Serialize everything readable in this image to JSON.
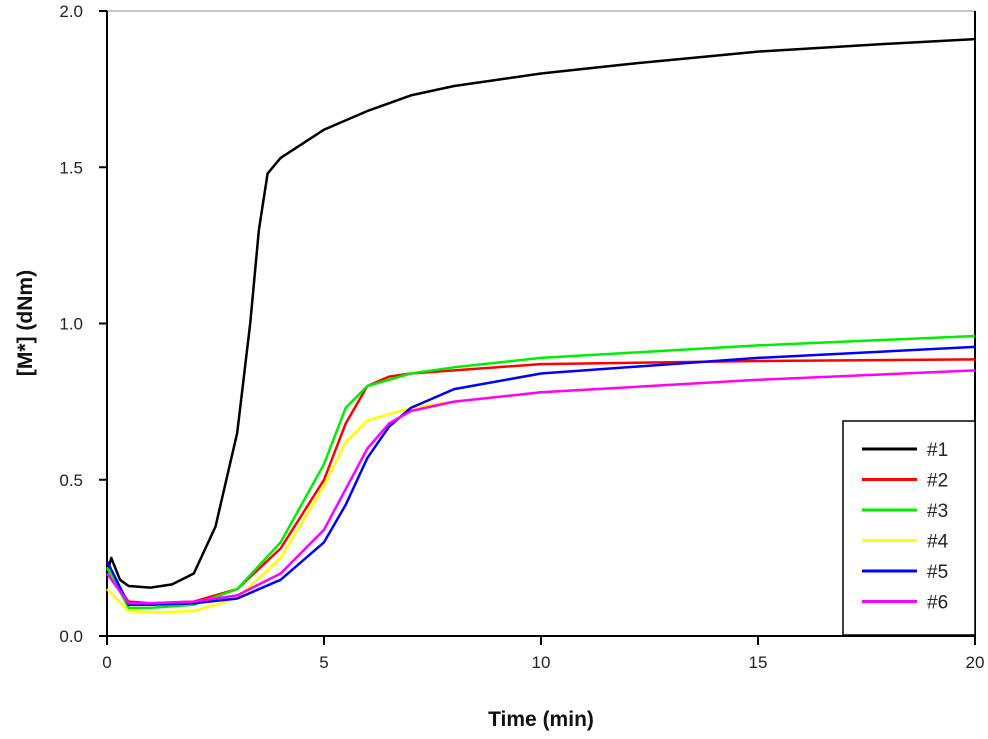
{
  "chart_data": {
    "type": "line",
    "title": "",
    "xlabel": "Time (min)",
    "ylabel": "[M*] (dNm)",
    "xlim": [
      0,
      20
    ],
    "ylim": [
      0,
      2.0
    ],
    "xticks": [
      "0",
      "5",
      "10",
      "15",
      "20"
    ],
    "xtick_values": [
      0,
      5,
      10,
      15,
      20
    ],
    "yticks": [
      "0.0",
      "0.5",
      "1.0",
      "1.5",
      "2.0"
    ],
    "ytick_values": [
      0,
      0.5,
      1.0,
      1.5,
      2.0
    ],
    "grid": false,
    "legend_position": "bottom-right",
    "series": [
      {
        "name": "#1",
        "color": "#000000",
        "x": [
          0,
          0.1,
          0.3,
          0.5,
          1,
          1.5,
          2,
          2.5,
          3,
          3.3,
          3.5,
          3.7,
          4,
          5,
          6,
          7,
          8,
          10,
          12,
          15,
          18,
          20
        ],
        "y": [
          0.2,
          0.25,
          0.18,
          0.16,
          0.155,
          0.165,
          0.2,
          0.35,
          0.65,
          1.0,
          1.3,
          1.48,
          1.53,
          1.62,
          1.68,
          1.73,
          1.76,
          1.8,
          1.83,
          1.87,
          1.895,
          1.91
        ]
      },
      {
        "name": "#2",
        "color": "#ff0000",
        "x": [
          0,
          0.5,
          1,
          2,
          3,
          4,
          5,
          5.5,
          6,
          6.5,
          7,
          8,
          10,
          15,
          20
        ],
        "y": [
          0.2,
          0.11,
          0.105,
          0.11,
          0.15,
          0.28,
          0.5,
          0.68,
          0.8,
          0.83,
          0.84,
          0.85,
          0.87,
          0.88,
          0.885
        ]
      },
      {
        "name": "#3",
        "color": "#00ee00",
        "x": [
          0,
          0.5,
          1,
          2,
          3,
          4,
          5,
          5.5,
          6,
          7,
          8,
          10,
          15,
          20
        ],
        "y": [
          0.22,
          0.09,
          0.09,
          0.1,
          0.15,
          0.3,
          0.55,
          0.73,
          0.8,
          0.84,
          0.86,
          0.89,
          0.93,
          0.96
        ]
      },
      {
        "name": "#4",
        "color": "#ffff00",
        "x": [
          0,
          0.5,
          1,
          2,
          3,
          4,
          5,
          5.5,
          6,
          7,
          8,
          10,
          15,
          20
        ],
        "y": [
          0.15,
          0.08,
          0.075,
          0.08,
          0.12,
          0.25,
          0.48,
          0.62,
          0.69,
          0.73,
          0.75,
          0.78,
          0.82,
          0.85
        ]
      },
      {
        "name": "#5",
        "color": "#0000ff",
        "x": [
          0,
          0.5,
          1,
          2,
          3,
          4,
          5,
          5.5,
          6,
          6.5,
          7,
          8,
          10,
          15,
          20
        ],
        "y": [
          0.24,
          0.1,
          0.1,
          0.105,
          0.12,
          0.18,
          0.3,
          0.42,
          0.57,
          0.67,
          0.73,
          0.79,
          0.84,
          0.89,
          0.925
        ]
      },
      {
        "name": "#6",
        "color": "#ff00ff",
        "x": [
          0,
          0.5,
          1,
          2,
          3,
          4,
          5,
          5.5,
          6,
          6.5,
          7,
          8,
          10,
          15,
          20
        ],
        "y": [
          0.2,
          0.105,
          0.105,
          0.11,
          0.13,
          0.2,
          0.34,
          0.47,
          0.6,
          0.68,
          0.72,
          0.75,
          0.78,
          0.82,
          0.85
        ]
      }
    ]
  }
}
